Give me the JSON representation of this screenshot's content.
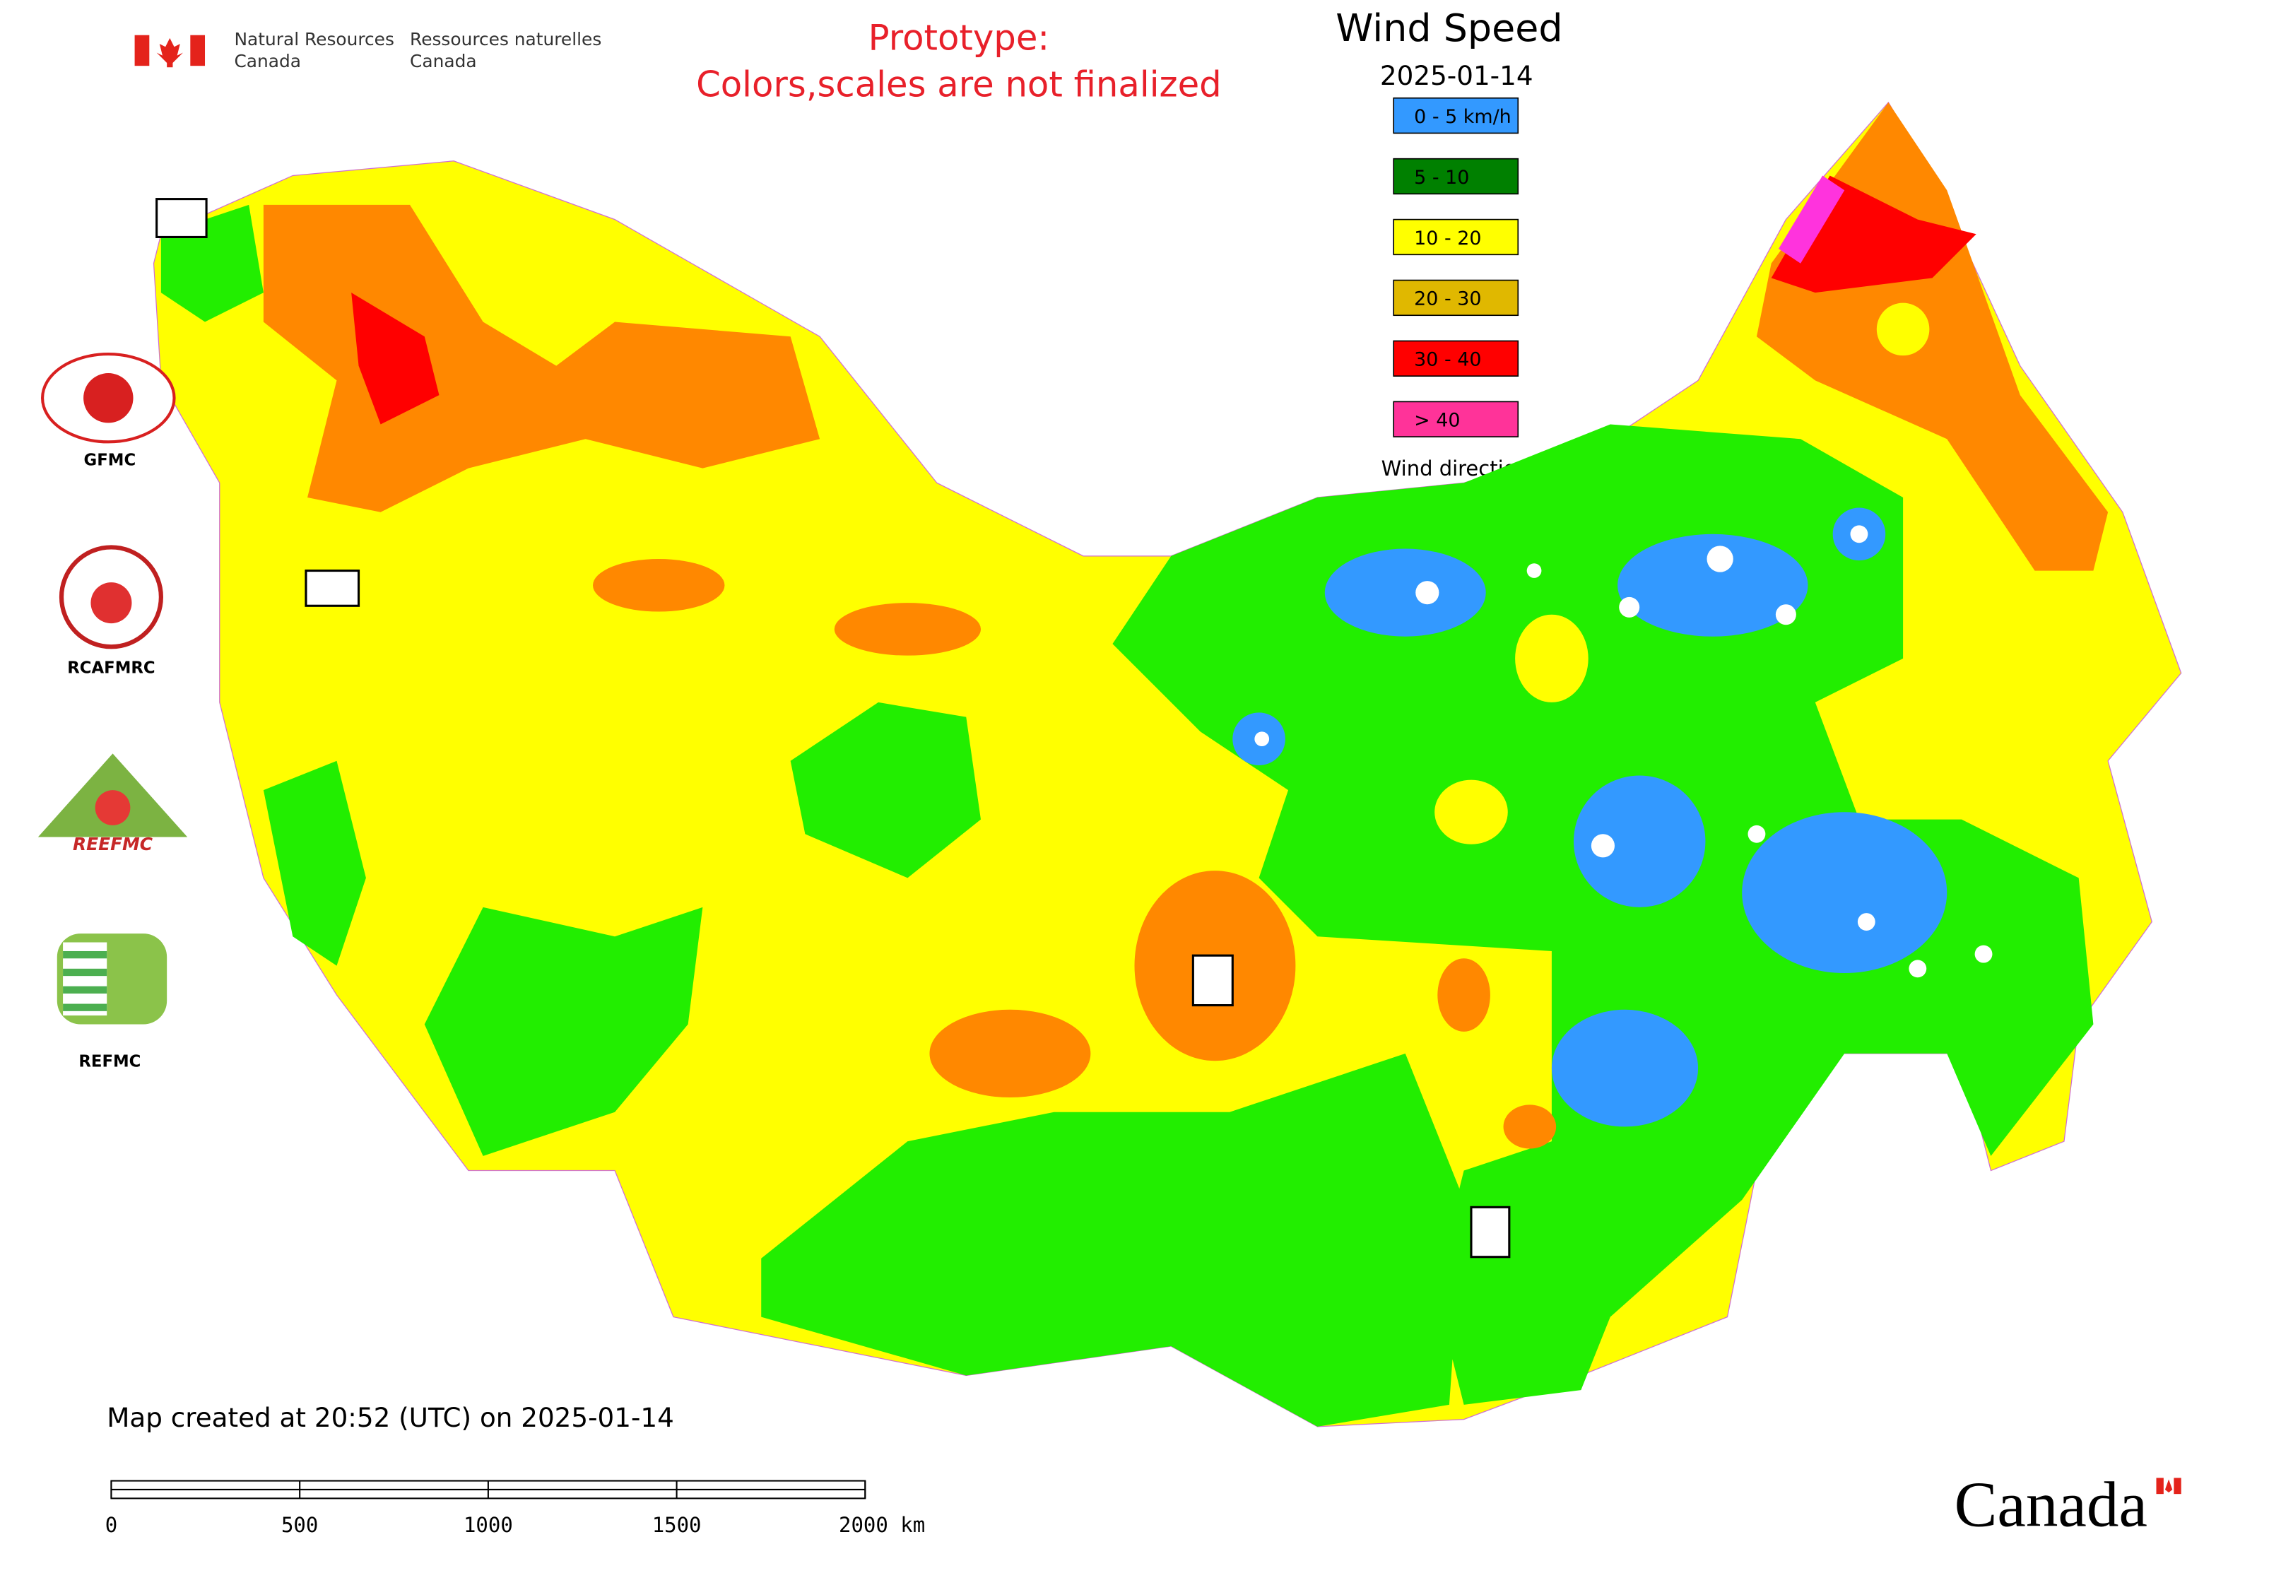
{
  "header": {
    "agency_en": [
      "Natural Resources",
      "Canada"
    ],
    "agency_fr": [
      "Ressources naturelles",
      "Canada"
    ]
  },
  "notice": [
    "Prototype:",
    "Colors,scales are not finalized"
  ],
  "title": "Wind Speed",
  "date": "2025-01-14",
  "legend": {
    "items": [
      {
        "label": "0 - 5 km/h",
        "color": "#3399ff"
      },
      {
        "label": "5 - 10",
        "color": "#008000"
      },
      {
        "label": "10 - 20",
        "color": "#ffff00"
      },
      {
        "label": "20 - 30",
        "color": "#e0b800"
      },
      {
        "label": "30 - 40",
        "color": "#ff0000"
      },
      {
        "label": "> 40",
        "color": "#ff3399"
      }
    ],
    "direction_label": "Wind direction"
  },
  "logos": [
    "GFMC",
    "RCAFMRC",
    "REEFMC",
    "REFMC"
  ],
  "footer": {
    "created": "Map created at 20:52 (UTC) on 2025-01-14",
    "scale_labels": [
      "0",
      "500",
      "1000",
      "1500",
      "2000 km"
    ],
    "wordmark": "Canada"
  }
}
